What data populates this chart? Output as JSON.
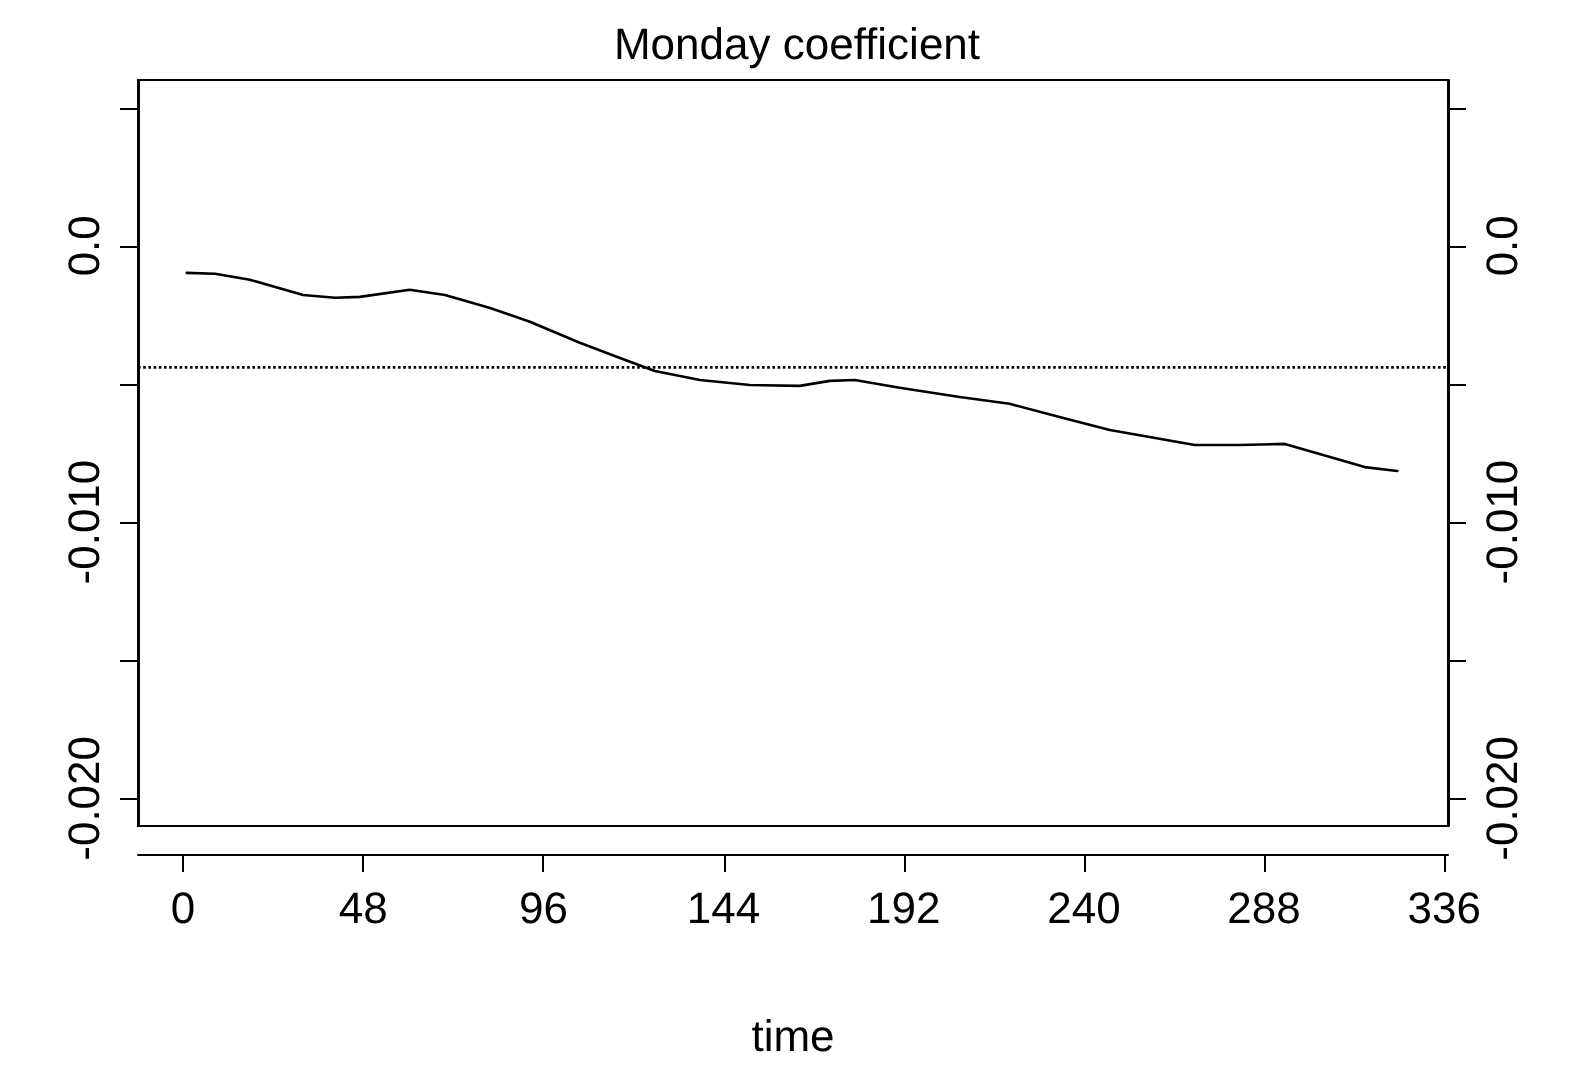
{
  "chart_data": {
    "type": "line",
    "title": "Monday coefficient",
    "xlabel": "time",
    "xlim": [
      -12,
      337
    ],
    "xticks": [
      0,
      48,
      96,
      144,
      192,
      240,
      288,
      336
    ],
    "ylim": [
      -0.021,
      0.006
    ],
    "yticks": [
      {
        "value": 0.005,
        "label": null
      },
      {
        "value": 0,
        "label": "0.0"
      },
      {
        "value": -0.005,
        "label": null
      },
      {
        "value": -0.01,
        "label": "-0.010"
      },
      {
        "value": -0.015,
        "label": null
      },
      {
        "value": -0.02,
        "label": "-0.020"
      }
    ],
    "y2lim": [
      -0.021,
      0.006
    ],
    "y2ticks": [
      {
        "value": 0.005,
        "label": null
      },
      {
        "value": 0,
        "label": "0.0"
      },
      {
        "value": -0.005,
        "label": null
      },
      {
        "value": -0.01,
        "label": "-0.010"
      },
      {
        "value": -0.015,
        "label": null
      },
      {
        "value": -0.02,
        "label": "-0.020"
      }
    ],
    "x": [
      1,
      8.5,
      17.8,
      32,
      40.5,
      47.1,
      60.4,
      69.8,
      81.8,
      92.4,
      105.7,
      116.4,
      125.7,
      137.7,
      151,
      164.3,
      172.3,
      179,
      190.9,
      206.9,
      220.2,
      233.5,
      246.9,
      257.5,
      269.5,
      281.5,
      293.5,
      302.8,
      314.8,
      323.5
    ],
    "series": [
      {
        "color": "#000000",
        "values": [
          -0.00098,
          -0.00101,
          -0.00123,
          -0.00178,
          -0.00188,
          -0.00185,
          -0.00159,
          -0.00178,
          -0.00225,
          -0.00275,
          -0.00351,
          -0.00406,
          -0.00453,
          -0.00486,
          -0.00504,
          -0.00507,
          -0.00489,
          -0.00486,
          -0.00514,
          -0.00547,
          -0.00572,
          -0.0062,
          -0.00667,
          -0.00692,
          -0.00721,
          -0.00721,
          -0.00717,
          -0.00754,
          -0.00801,
          -0.00815
        ]
      }
    ],
    "ref_lines": [
      {
        "axis": "y",
        "value": -0.0044,
        "color": "#000000",
        "line_style": "dotted"
      }
    ],
    "grid": false,
    "marker": "none",
    "line_style": "solid"
  }
}
